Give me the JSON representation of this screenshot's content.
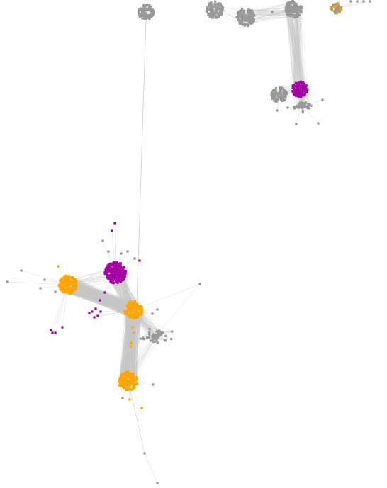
{
  "graph": {
    "colors": {
      "background": "#ffffff",
      "edge": "#c8c8c8",
      "node_gray": "#999999",
      "node_orange": "#ffa500",
      "node_purple": "#a400a4"
    },
    "node_categories": [
      "gray",
      "orange",
      "purple"
    ],
    "clusters": [
      {
        "id": "top-gray-1",
        "color": "gray"
      },
      {
        "id": "top-gray-2",
        "color": "gray"
      },
      {
        "id": "top-gray-3",
        "color": "gray"
      },
      {
        "id": "top-gray-4",
        "color": "gray"
      },
      {
        "id": "top-mixed-small",
        "color": "gray",
        "secondary_color": "orange"
      },
      {
        "id": "right-purple",
        "color": "purple"
      },
      {
        "id": "right-gray-left",
        "color": "gray"
      },
      {
        "id": "right-gray-mesh",
        "color": "gray"
      },
      {
        "id": "main-purple",
        "color": "purple"
      },
      {
        "id": "main-orange-left",
        "color": "orange"
      },
      {
        "id": "main-orange-center",
        "color": "orange"
      },
      {
        "id": "main-orange-bottom",
        "color": "orange"
      },
      {
        "id": "main-gray-mesh",
        "color": "gray"
      }
    ],
    "has_text_labels": false
  }
}
